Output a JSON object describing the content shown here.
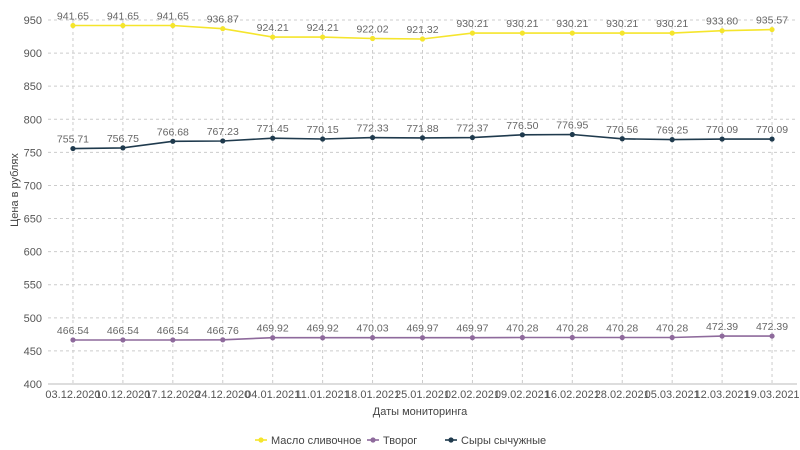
{
  "chart_data": {
    "type": "line",
    "title": "",
    "xlabel": "Даты мониторинга",
    "ylabel": "Цена в рублях",
    "ylim": [
      400,
      950
    ],
    "yticks": [
      400,
      450,
      500,
      550,
      600,
      650,
      700,
      750,
      800,
      850,
      900,
      950
    ],
    "grid": true,
    "legend_position": "bottom",
    "categories": [
      "03.12.2020",
      "10.12.2020",
      "17.12.2020",
      "24.12.2020",
      "04.01.2021",
      "11.01.2021",
      "18.01.2021",
      "25.01.2021",
      "02.02.2021",
      "09.02.2021",
      "16.02.2021",
      "28.02.2021",
      "05.03.2021",
      "12.03.2021",
      "19.03.2021"
    ],
    "series": [
      {
        "name": "Масло сливочное",
        "color": "#f5e52c",
        "values": [
          941.65,
          941.65,
          941.65,
          936.87,
          924.21,
          924.21,
          922.02,
          921.32,
          930.21,
          930.21,
          930.21,
          930.21,
          930.21,
          933.8,
          935.57
        ],
        "labels": [
          "941.65",
          "941.65",
          "941.65",
          "936.87",
          "924.21",
          "924.21",
          "922.02",
          "921.32",
          "930.21",
          "930.21",
          "930.21",
          "930.21",
          "930.21",
          "933.80",
          "935.57"
        ]
      },
      {
        "name": "Творог",
        "color": "#8e6a9c",
        "values": [
          466.54,
          466.54,
          466.54,
          466.76,
          469.92,
          469.92,
          470.03,
          469.97,
          469.97,
          470.28,
          470.28,
          470.28,
          470.28,
          472.39,
          472.39
        ],
        "labels": [
          "466.54",
          "466.54",
          "466.54",
          "466.76",
          "469.92",
          "469.92",
          "470.03",
          "469.97",
          "469.97",
          "470.28",
          "470.28",
          "470.28",
          "470.28",
          "472.39",
          "472.39"
        ]
      },
      {
        "name": "Сыры сычужные",
        "color": "#1f3a4d",
        "values": [
          755.71,
          756.75,
          766.68,
          767.23,
          771.45,
          770.15,
          772.33,
          771.88,
          772.37,
          776.5,
          776.95,
          770.56,
          769.25,
          770.09,
          770.09
        ],
        "labels": [
          "755.71",
          "756.75",
          "766.68",
          "767.23",
          "771.45",
          "770.15",
          "772.33",
          "771.88",
          "772.37",
          "776.50",
          "776.95",
          "770.56",
          "769.25",
          "770.09",
          "770.09"
        ]
      }
    ]
  }
}
